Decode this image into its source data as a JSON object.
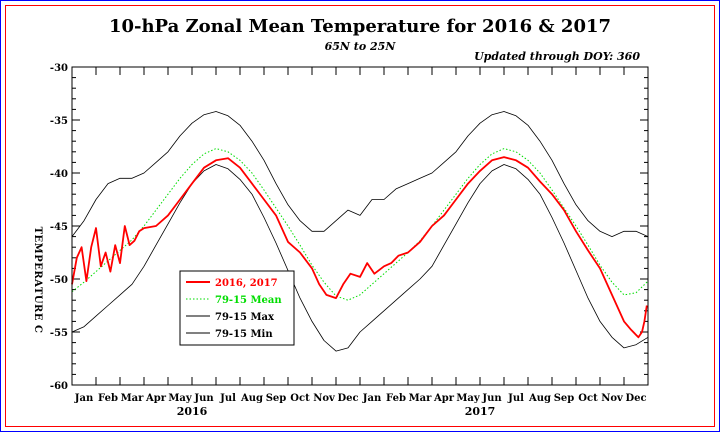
{
  "chart_data": {
    "type": "line",
    "title": "10-hPa Zonal Mean Temperature for 2016 & 2017",
    "subtitle": "65N to 25N",
    "updated": "Updated through DOY: 360",
    "ylabel": "TEMPERATURE C",
    "ylim": [
      -60,
      -30
    ],
    "yticks": [
      -30,
      -35,
      -40,
      -45,
      -50,
      -55,
      -60
    ],
    "months": [
      "Jan",
      "Feb",
      "Mar",
      "Apr",
      "May",
      "Jun",
      "Jul",
      "Aug",
      "Sep",
      "Oct",
      "Nov",
      "Dec"
    ],
    "years": [
      "2016",
      "2017"
    ],
    "x_unit": "month index over two years (0 = 1 Jan 2016, 24 = end of Dec 2017)",
    "legend": [
      {
        "label": "2016, 2017",
        "color": "#ff0000",
        "style": "solid-thick"
      },
      {
        "label": "79-15 Mean",
        "color": "#00dd00",
        "style": "dotted"
      },
      {
        "label": "79-15 Max",
        "color": "#000000",
        "style": "solid-thin"
      },
      {
        "label": "79-15 Min",
        "color": "#000000",
        "style": "solid-thin"
      }
    ],
    "legend_position": "lower-left",
    "series": [
      {
        "name": "79-15 Mean",
        "color": "#00dd00",
        "x": [
          0,
          0.5,
          1,
          1.5,
          2,
          2.5,
          3,
          3.5,
          4,
          4.5,
          5,
          5.5,
          6,
          6.5,
          7,
          7.5,
          8,
          8.5,
          9,
          9.5,
          10,
          10.5,
          11,
          11.5,
          12,
          12.5,
          13,
          13.5,
          14,
          14.5,
          15,
          15.5,
          16,
          16.5,
          17,
          17.5,
          18,
          18.5,
          19,
          19.5,
          20,
          20.5,
          21,
          21.5,
          22,
          22.5,
          23,
          23.5,
          24
        ],
        "y": [
          -51.2,
          -50.3,
          -49.3,
          -48.3,
          -47.3,
          -46.3,
          -45.0,
          -43.5,
          -42.0,
          -40.5,
          -39.2,
          -38.2,
          -37.7,
          -38.0,
          -38.8,
          -40.0,
          -41.6,
          -43.3,
          -45.0,
          -46.8,
          -48.7,
          -50.3,
          -51.6,
          -52.0,
          -51.5,
          -50.5,
          -49.5,
          -48.5,
          -47.5,
          -46.4,
          -45.0,
          -43.5,
          -42.0,
          -40.5,
          -39.2,
          -38.2,
          -37.7,
          -38.0,
          -38.8,
          -40.0,
          -41.6,
          -43.3,
          -45.0,
          -46.8,
          -48.7,
          -50.3,
          -51.5,
          -51.3,
          -50.2
        ]
      },
      {
        "name": "79-15 Max",
        "color": "#000000",
        "x": [
          0,
          0.5,
          1,
          1.5,
          2,
          2.5,
          3,
          3.5,
          4,
          4.5,
          5,
          5.5,
          6,
          6.5,
          7,
          7.5,
          8,
          8.5,
          9,
          9.5,
          10,
          10.5,
          11,
          11.5,
          12,
          12.5,
          13,
          13.5,
          14,
          14.5,
          15,
          15.5,
          16,
          16.5,
          17,
          17.5,
          18,
          18.5,
          19,
          19.5,
          20,
          20.5,
          21,
          21.5,
          22,
          22.5,
          23,
          23.5,
          24
        ],
        "y": [
          -46.0,
          -44.5,
          -42.5,
          -41.0,
          -40.5,
          -40.5,
          -40.0,
          -39.0,
          -38.0,
          -36.5,
          -35.3,
          -34.5,
          -34.2,
          -34.6,
          -35.5,
          -37.0,
          -38.8,
          -41.0,
          -43.0,
          -44.5,
          -45.5,
          -45.5,
          -44.5,
          -43.5,
          -44.0,
          -42.5,
          -42.5,
          -41.5,
          -41.0,
          -40.5,
          -40.0,
          -39.0,
          -38.0,
          -36.5,
          -35.3,
          -34.5,
          -34.2,
          -34.6,
          -35.5,
          -37.0,
          -38.8,
          -41.0,
          -43.0,
          -44.5,
          -45.5,
          -46.0,
          -45.5,
          -45.5,
          -46.0
        ]
      },
      {
        "name": "79-15 Min",
        "color": "#000000",
        "x": [
          0,
          0.5,
          1,
          1.5,
          2,
          2.5,
          3,
          3.5,
          4,
          4.5,
          5,
          5.5,
          6,
          6.5,
          7,
          7.5,
          8,
          8.5,
          9,
          9.5,
          10,
          10.5,
          11,
          11.5,
          12,
          12.5,
          13,
          13.5,
          14,
          14.5,
          15,
          15.5,
          16,
          16.5,
          17,
          17.5,
          18,
          18.5,
          19,
          19.5,
          20,
          20.5,
          21,
          21.5,
          22,
          22.5,
          23,
          23.5,
          24
        ],
        "y": [
          -55.0,
          -54.5,
          -53.5,
          -52.5,
          -51.5,
          -50.5,
          -48.8,
          -46.8,
          -44.8,
          -42.8,
          -41.0,
          -39.8,
          -39.2,
          -39.6,
          -40.6,
          -42.0,
          -44.2,
          -46.6,
          -49.2,
          -51.8,
          -54.0,
          -55.8,
          -56.8,
          -56.5,
          -55.0,
          -54.0,
          -53.0,
          -52.0,
          -51.0,
          -50.0,
          -48.8,
          -46.8,
          -44.8,
          -42.8,
          -41.0,
          -39.8,
          -39.2,
          -39.6,
          -40.6,
          -42.0,
          -44.2,
          -46.6,
          -49.2,
          -51.8,
          -54.0,
          -55.5,
          -56.5,
          -56.2,
          -55.5
        ]
      },
      {
        "name": "2016, 2017",
        "color": "#ff0000",
        "x": [
          0,
          0.2,
          0.4,
          0.6,
          0.8,
          1.0,
          1.2,
          1.4,
          1.6,
          1.8,
          2.0,
          2.2,
          2.4,
          2.6,
          2.8,
          3.0,
          3.5,
          4.0,
          4.5,
          5.0,
          5.5,
          6.0,
          6.5,
          7.0,
          7.5,
          8.0,
          8.5,
          9.0,
          9.5,
          10.0,
          10.3,
          10.6,
          11.0,
          11.3,
          11.6,
          12.0,
          12.3,
          12.6,
          13.0,
          13.3,
          13.6,
          14.0,
          14.5,
          15.0,
          15.5,
          16.0,
          16.5,
          17.0,
          17.5,
          18.0,
          18.5,
          19.0,
          19.5,
          20.0,
          20.5,
          21.0,
          21.5,
          22.0,
          22.5,
          23.0,
          23.3,
          23.6,
          23.75,
          23.85,
          23.95
        ],
        "y": [
          -50.5,
          -48.0,
          -47.0,
          -50.2,
          -47.0,
          -45.2,
          -48.8,
          -47.5,
          -49.3,
          -46.8,
          -48.5,
          -45.0,
          -46.8,
          -46.4,
          -45.5,
          -45.2,
          -45.0,
          -44.0,
          -42.5,
          -41.0,
          -39.5,
          -38.8,
          -38.6,
          -39.5,
          -41.0,
          -42.5,
          -44.0,
          -46.5,
          -47.5,
          -49.0,
          -50.5,
          -51.5,
          -51.8,
          -50.5,
          -49.5,
          -49.8,
          -48.5,
          -49.5,
          -48.8,
          -48.5,
          -47.8,
          -47.5,
          -46.5,
          -45.0,
          -44.0,
          -42.5,
          -41.0,
          -39.8,
          -38.8,
          -38.5,
          -38.8,
          -39.5,
          -40.8,
          -42.0,
          -43.5,
          -45.5,
          -47.3,
          -49.0,
          -51.5,
          -54.0,
          -54.8,
          -55.5,
          -55.0,
          -54.0,
          -52.5
        ]
      }
    ]
  }
}
